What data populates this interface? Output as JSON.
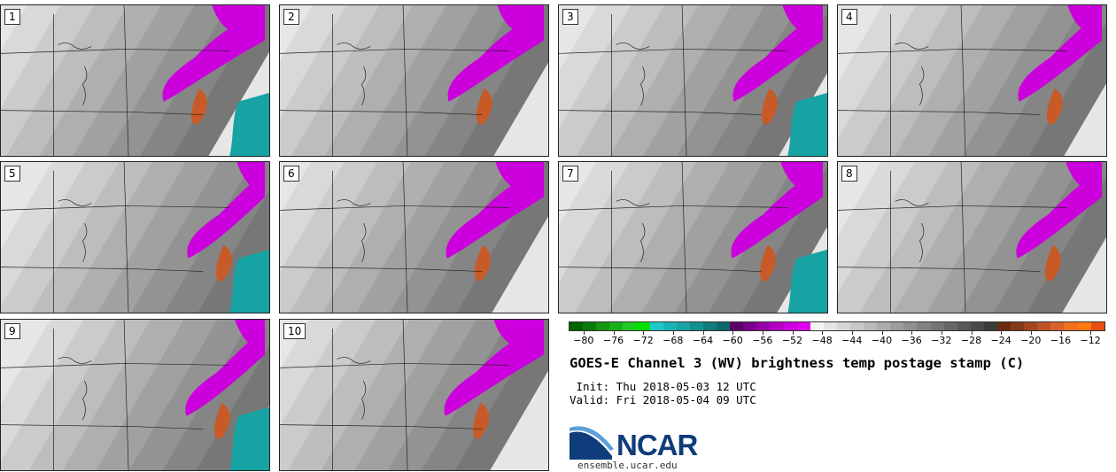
{
  "panels": [
    {
      "label": "1"
    },
    {
      "label": "2"
    },
    {
      "label": "3"
    },
    {
      "label": "4"
    },
    {
      "label": "5"
    },
    {
      "label": "6"
    },
    {
      "label": "7"
    },
    {
      "label": "8"
    },
    {
      "label": "9"
    },
    {
      "label": "10"
    }
  ],
  "colorbar": {
    "ticks": [
      "−80",
      "−76",
      "−72",
      "−68",
      "−64",
      "−60",
      "−56",
      "−52",
      "−48",
      "−44",
      "−40",
      "−36",
      "−32",
      "−28",
      "−24",
      "−20",
      "−16",
      "−12"
    ],
    "tick_values": [
      -80,
      -76,
      -72,
      -68,
      -64,
      -60,
      -56,
      -52,
      -48,
      -44,
      -40,
      -36,
      -32,
      -28,
      -24,
      -20,
      -16,
      -12
    ],
    "min": -82,
    "max": -10,
    "colors": [
      "#006400",
      "#0a7a0a",
      "#119611",
      "#18b018",
      "#1fcb1f",
      "#00e000",
      "#1fc8c8",
      "#1ab4b4",
      "#17a3a3",
      "#128f8f",
      "#0e7c7c",
      "#0a6969",
      "#5a0066",
      "#780088",
      "#9600a8",
      "#b400c4",
      "#cc00dd",
      "#e000f0",
      "#f2f2f2",
      "#e4e4e4",
      "#d6d6d6",
      "#c8c8c8",
      "#bababa",
      "#acacac",
      "#9e9e9e",
      "#909090",
      "#828282",
      "#747474",
      "#666666",
      "#585858",
      "#4a4a4a",
      "#3c3c3c",
      "#6a2a10",
      "#86381a",
      "#a24620",
      "#be5426",
      "#d8622a",
      "#f07020",
      "#ff7a10",
      "#e85010"
    ]
  },
  "title": "GOES-E Channel 3 (WV) brightness temp postage stamp (C)",
  "init": " Init: Thu 2018-05-03 12 UTC",
  "valid": "Valid: Fri 2018-05-04 09 UTC",
  "logo_text": "NCAR",
  "site": "ensemble.ucar.edu"
}
